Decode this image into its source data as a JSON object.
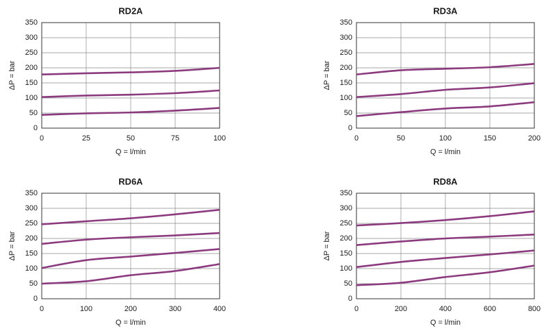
{
  "chart_data": [
    {
      "type": "line",
      "title": "RD2A",
      "xlabel": "Q = l/min",
      "ylabel": "ΔP = bar",
      "x": [
        0,
        25,
        50,
        75,
        100
      ],
      "xlim": [
        0,
        100
      ],
      "xticks": [
        0,
        25,
        50,
        75,
        100
      ],
      "ylim": [
        0,
        350
      ],
      "yticks": [
        0,
        50,
        100,
        150,
        200,
        250,
        300,
        350
      ],
      "grid": true,
      "series": [
        {
          "color": "#8b3a7e",
          "values": [
            178,
            182,
            185,
            190,
            200
          ]
        },
        {
          "color": "#8b3a7e",
          "values": [
            103,
            108,
            111,
            116,
            125
          ]
        },
        {
          "color": "#8b3a7e",
          "values": [
            44,
            49,
            52,
            58,
            67
          ]
        }
      ]
    },
    {
      "type": "line",
      "title": "RD3A",
      "xlabel": "Q = l/min",
      "ylabel": "ΔP = bar",
      "x": [
        0,
        50,
        100,
        150,
        200
      ],
      "xlim": [
        0,
        200
      ],
      "xticks": [
        0,
        50,
        100,
        150,
        200
      ],
      "ylim": [
        0,
        350
      ],
      "yticks": [
        0,
        50,
        100,
        150,
        200,
        250,
        300,
        350
      ],
      "grid": true,
      "series": [
        {
          "color": "#8b3a7e",
          "values": [
            178,
            192,
            197,
            202,
            213
          ]
        },
        {
          "color": "#8b3a7e",
          "values": [
            103,
            113,
            127,
            135,
            149
          ]
        },
        {
          "color": "#8b3a7e",
          "values": [
            40,
            53,
            65,
            72,
            86
          ]
        }
      ]
    },
    {
      "type": "line",
      "title": "RD6A",
      "xlabel": "Q = l/min",
      "ylabel": "ΔP = bar",
      "x": [
        0,
        100,
        200,
        300,
        400
      ],
      "xlim": [
        0,
        400
      ],
      "xticks": [
        0,
        100,
        200,
        300,
        400
      ],
      "ylim": [
        0,
        350
      ],
      "yticks": [
        0,
        50,
        100,
        150,
        200,
        250,
        300,
        350
      ],
      "grid": true,
      "series": [
        {
          "color": "#8b3a7e",
          "values": [
            247,
            257,
            267,
            280,
            295
          ]
        },
        {
          "color": "#8b3a7e",
          "values": [
            182,
            196,
            204,
            210,
            218
          ]
        },
        {
          "color": "#8b3a7e",
          "values": [
            102,
            128,
            140,
            152,
            165
          ]
        },
        {
          "color": "#8b3a7e",
          "values": [
            50,
            58,
            78,
            92,
            115
          ]
        }
      ]
    },
    {
      "type": "line",
      "title": "RD8A",
      "xlabel": "Q = l/min",
      "ylabel": "ΔP = bar",
      "x": [
        0,
        200,
        400,
        600,
        800
      ],
      "xlim": [
        0,
        800
      ],
      "xticks": [
        0,
        200,
        400,
        600,
        800
      ],
      "ylim": [
        0,
        350
      ],
      "yticks": [
        0,
        50,
        100,
        150,
        200,
        250,
        300,
        350
      ],
      "grid": true,
      "series": [
        {
          "color": "#8b3a7e",
          "values": [
            243,
            251,
            261,
            274,
            290
          ]
        },
        {
          "color": "#8b3a7e",
          "values": [
            178,
            190,
            200,
            206,
            213
          ]
        },
        {
          "color": "#8b3a7e",
          "values": [
            105,
            122,
            135,
            147,
            160
          ]
        },
        {
          "color": "#8b3a7e",
          "values": [
            45,
            53,
            72,
            88,
            110
          ]
        }
      ]
    }
  ]
}
